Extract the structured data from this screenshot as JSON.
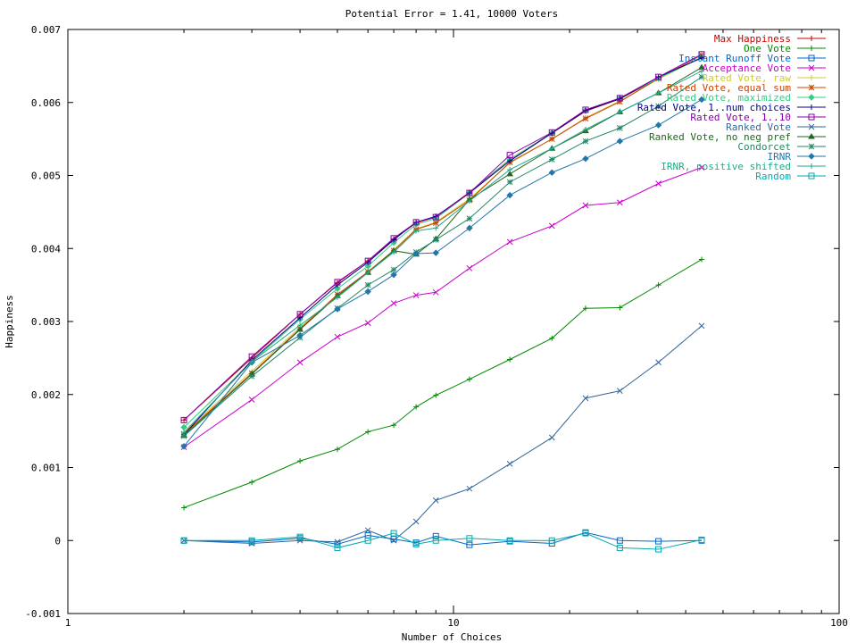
{
  "chart_data": {
    "type": "line",
    "title": "Potential Error = 1.41, 10000 Voters",
    "xlabel": "Number of Choices",
    "ylabel": "Happiness",
    "xscale": "log",
    "xlim": [
      1,
      100
    ],
    "ylim": [
      -0.001,
      0.007
    ],
    "xticks": [
      1,
      10,
      100
    ],
    "xtick_labels": [
      "1",
      "10",
      "100"
    ],
    "yticks": [
      -0.001,
      0,
      0.001,
      0.002,
      0.003,
      0.004,
      0.005,
      0.006,
      0.007
    ],
    "ytick_labels": [
      "-0.001",
      "0",
      "0.001",
      "0.002",
      "0.003",
      "0.004",
      "0.005",
      "0.006",
      "0.007"
    ],
    "legend_position": "top-right",
    "grid": false,
    "x": [
      2,
      3,
      4,
      5,
      6,
      7,
      8,
      9,
      11,
      14,
      18,
      22,
      27,
      34,
      44
    ],
    "series": [
      {
        "name": "Max Happiness",
        "color": "#cc0000",
        "marker": "plus",
        "values": [
          0.00165,
          0.0025,
          0.0031,
          0.00353,
          0.00383,
          0.00413,
          0.00435,
          0.00443,
          0.00477,
          0.00522,
          0.00558,
          0.00588,
          0.00605,
          0.00633,
          0.00662
        ]
      },
      {
        "name": "One Vote",
        "color": "#008800",
        "marker": "plus",
        "values": [
          0.00045,
          0.0008,
          0.00109,
          0.00125,
          0.00149,
          0.00158,
          0.00183,
          0.00199,
          0.00221,
          0.00248,
          0.00277,
          0.00318,
          0.00319,
          0.0035,
          0.00385
        ]
      },
      {
        "name": "Instant Runoff Vote",
        "color": "#0066cc",
        "marker": "square",
        "values": [
          0.0,
          -2e-05,
          3e-05,
          -5e-05,
          7e-05,
          2e-05,
          -3e-05,
          6e-05,
          -6e-05,
          -1e-05,
          -4e-05,
          0.00011,
          0.0,
          -1e-05,
          0.0
        ]
      },
      {
        "name": "Acceptance Vote",
        "color": "#cc00cc",
        "marker": "cross",
        "values": [
          0.00128,
          0.00193,
          0.00244,
          0.00279,
          0.00298,
          0.00325,
          0.00336,
          0.0034,
          0.00373,
          0.00409,
          0.00431,
          0.00459,
          0.00463,
          0.00489,
          0.00511
        ]
      },
      {
        "name": "Rated Vote, raw",
        "color": "#cccc33",
        "marker": "plus",
        "values": [
          0.00148,
          0.00232,
          0.00292,
          0.00335,
          0.00368,
          0.00398,
          0.00427,
          0.00436,
          0.00468,
          0.00517,
          0.0055,
          0.00579,
          0.00602,
          0.00632,
          0.00662
        ]
      },
      {
        "name": "Rated Vote, equal sum",
        "color": "#cc4400",
        "marker": "star",
        "values": [
          0.00146,
          0.00229,
          0.0029,
          0.00337,
          0.00368,
          0.00397,
          0.00426,
          0.00435,
          0.00466,
          0.00518,
          0.0055,
          0.00578,
          0.00601,
          0.00633,
          0.00665
        ]
      },
      {
        "name": "Rated Vote, maximized",
        "color": "#33cc88",
        "marker": "diamond",
        "values": [
          0.00155,
          0.00245,
          0.00303,
          0.00345,
          0.00376,
          0.00408,
          0.00433,
          0.00441,
          0.00476,
          0.00522,
          0.00558,
          0.00589,
          0.00606,
          0.00633,
          0.00662
        ]
      },
      {
        "name": "Rated Vote, 1..num choices",
        "color": "#000088",
        "marker": "plus",
        "values": [
          0.00145,
          0.00247,
          0.00305,
          0.0035,
          0.00381,
          0.00412,
          0.00436,
          0.00444,
          0.00476,
          0.0052,
          0.00558,
          0.00589,
          0.00605,
          0.00635,
          0.00661
        ]
      },
      {
        "name": "Rated Vote, 1..10",
        "color": "#8800aa",
        "marker": "square",
        "values": [
          0.00165,
          0.00252,
          0.0031,
          0.00354,
          0.00383,
          0.00414,
          0.00436,
          0.00443,
          0.00476,
          0.00528,
          0.00559,
          0.0059,
          0.00606,
          0.00635,
          0.00666
        ]
      },
      {
        "name": "Ranked Vote",
        "color": "#336699",
        "marker": "cross",
        "values": [
          0.0,
          -4e-05,
          0.0,
          -2e-05,
          0.00014,
          0.0,
          0.00026,
          0.00055,
          0.00071,
          0.00105,
          0.00141,
          0.00195,
          0.00205,
          0.00244,
          0.00294
        ]
      },
      {
        "name": "Ranked Vote, no neg pref",
        "color": "#226622",
        "marker": "triangle",
        "values": [
          0.00144,
          0.00228,
          0.00289,
          0.00335,
          0.00367,
          0.00397,
          0.00392,
          0.00413,
          0.00467,
          0.00502,
          0.00537,
          0.00561,
          0.00587,
          0.00613,
          0.00648
        ]
      },
      {
        "name": "Condorcet",
        "color": "#228866",
        "marker": "star",
        "values": [
          0.00143,
          0.00225,
          0.00278,
          0.00318,
          0.0035,
          0.00371,
          0.00395,
          0.00412,
          0.00441,
          0.00491,
          0.00522,
          0.00547,
          0.00565,
          0.00595,
          0.00635
        ]
      },
      {
        "name": "IRNR",
        "color": "#2277aa",
        "marker": "diamond",
        "values": [
          0.00129,
          0.00244,
          0.00281,
          0.00317,
          0.00341,
          0.00364,
          0.00393,
          0.00394,
          0.00428,
          0.00473,
          0.00504,
          0.00523,
          0.00547,
          0.00569,
          0.00604
        ]
      },
      {
        "name": "IRNR, positive shifted",
        "color": "#22aa88",
        "marker": "plus",
        "values": [
          0.00148,
          0.00245,
          0.00295,
          0.00333,
          0.00367,
          0.00395,
          0.00424,
          0.00428,
          0.00465,
          0.00508,
          0.00537,
          0.00563,
          0.00587,
          0.00613,
          0.00643
        ]
      },
      {
        "name": "Random",
        "color": "#00aaaa",
        "marker": "square",
        "values": [
          0.0,
          0.0,
          5e-05,
          -0.0001,
          0.0,
          0.0001,
          -5e-05,
          0.0,
          3e-05,
          0.0,
          0.0,
          0.0001,
          -0.0001,
          -0.00012,
          1e-05
        ]
      }
    ]
  }
}
